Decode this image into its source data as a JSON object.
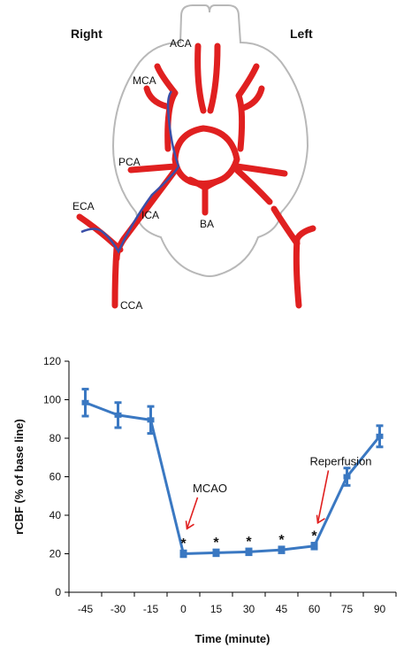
{
  "diagram": {
    "side_labels": {
      "right": "Right",
      "left": "Left"
    },
    "vessel_labels": {
      "aca": "ACA",
      "mca": "MCA",
      "pca": "PCA",
      "eca": "ECA",
      "ica": "ICA",
      "ba": "BA",
      "cca": "CCA"
    },
    "colors": {
      "artery": "#e02020",
      "filament": "#3a4fa8",
      "outline": "#b8b8b8"
    }
  },
  "chart_data": {
    "type": "line",
    "x": [
      -45,
      -30,
      -15,
      0,
      15,
      30,
      45,
      60,
      75,
      90
    ],
    "x_tick_labels": [
      "-45",
      "-30",
      "-15",
      "0",
      "15",
      "30",
      "45",
      "60",
      "75",
      "90"
    ],
    "series": [
      {
        "values": [
          98.5,
          92,
          89.5,
          20,
          20.5,
          21,
          22,
          24,
          60,
          81
        ],
        "errors": [
          7,
          6.5,
          7,
          1.5,
          1.5,
          1.5,
          1.5,
          1.5,
          4.5,
          5.5
        ],
        "color": "#3a78c2"
      }
    ],
    "asterisks": [
      0,
      15,
      30,
      45,
      60
    ],
    "asterisk_symbol": "*",
    "ylim": [
      0,
      120
    ],
    "yticks": [
      0,
      20,
      40,
      60,
      80,
      100,
      120
    ],
    "xlabel": "Time (minute)",
    "ylabel": "rCBF (% of base line)",
    "annotations": [
      {
        "text": "MCAO",
        "x": 0,
        "y": 52,
        "arrow_to_y": 33
      },
      {
        "text": "Reperfusion",
        "x": 60,
        "y": 66,
        "arrow_to_y": 36
      }
    ],
    "grid": false,
    "annotation_color": "#e02020"
  }
}
